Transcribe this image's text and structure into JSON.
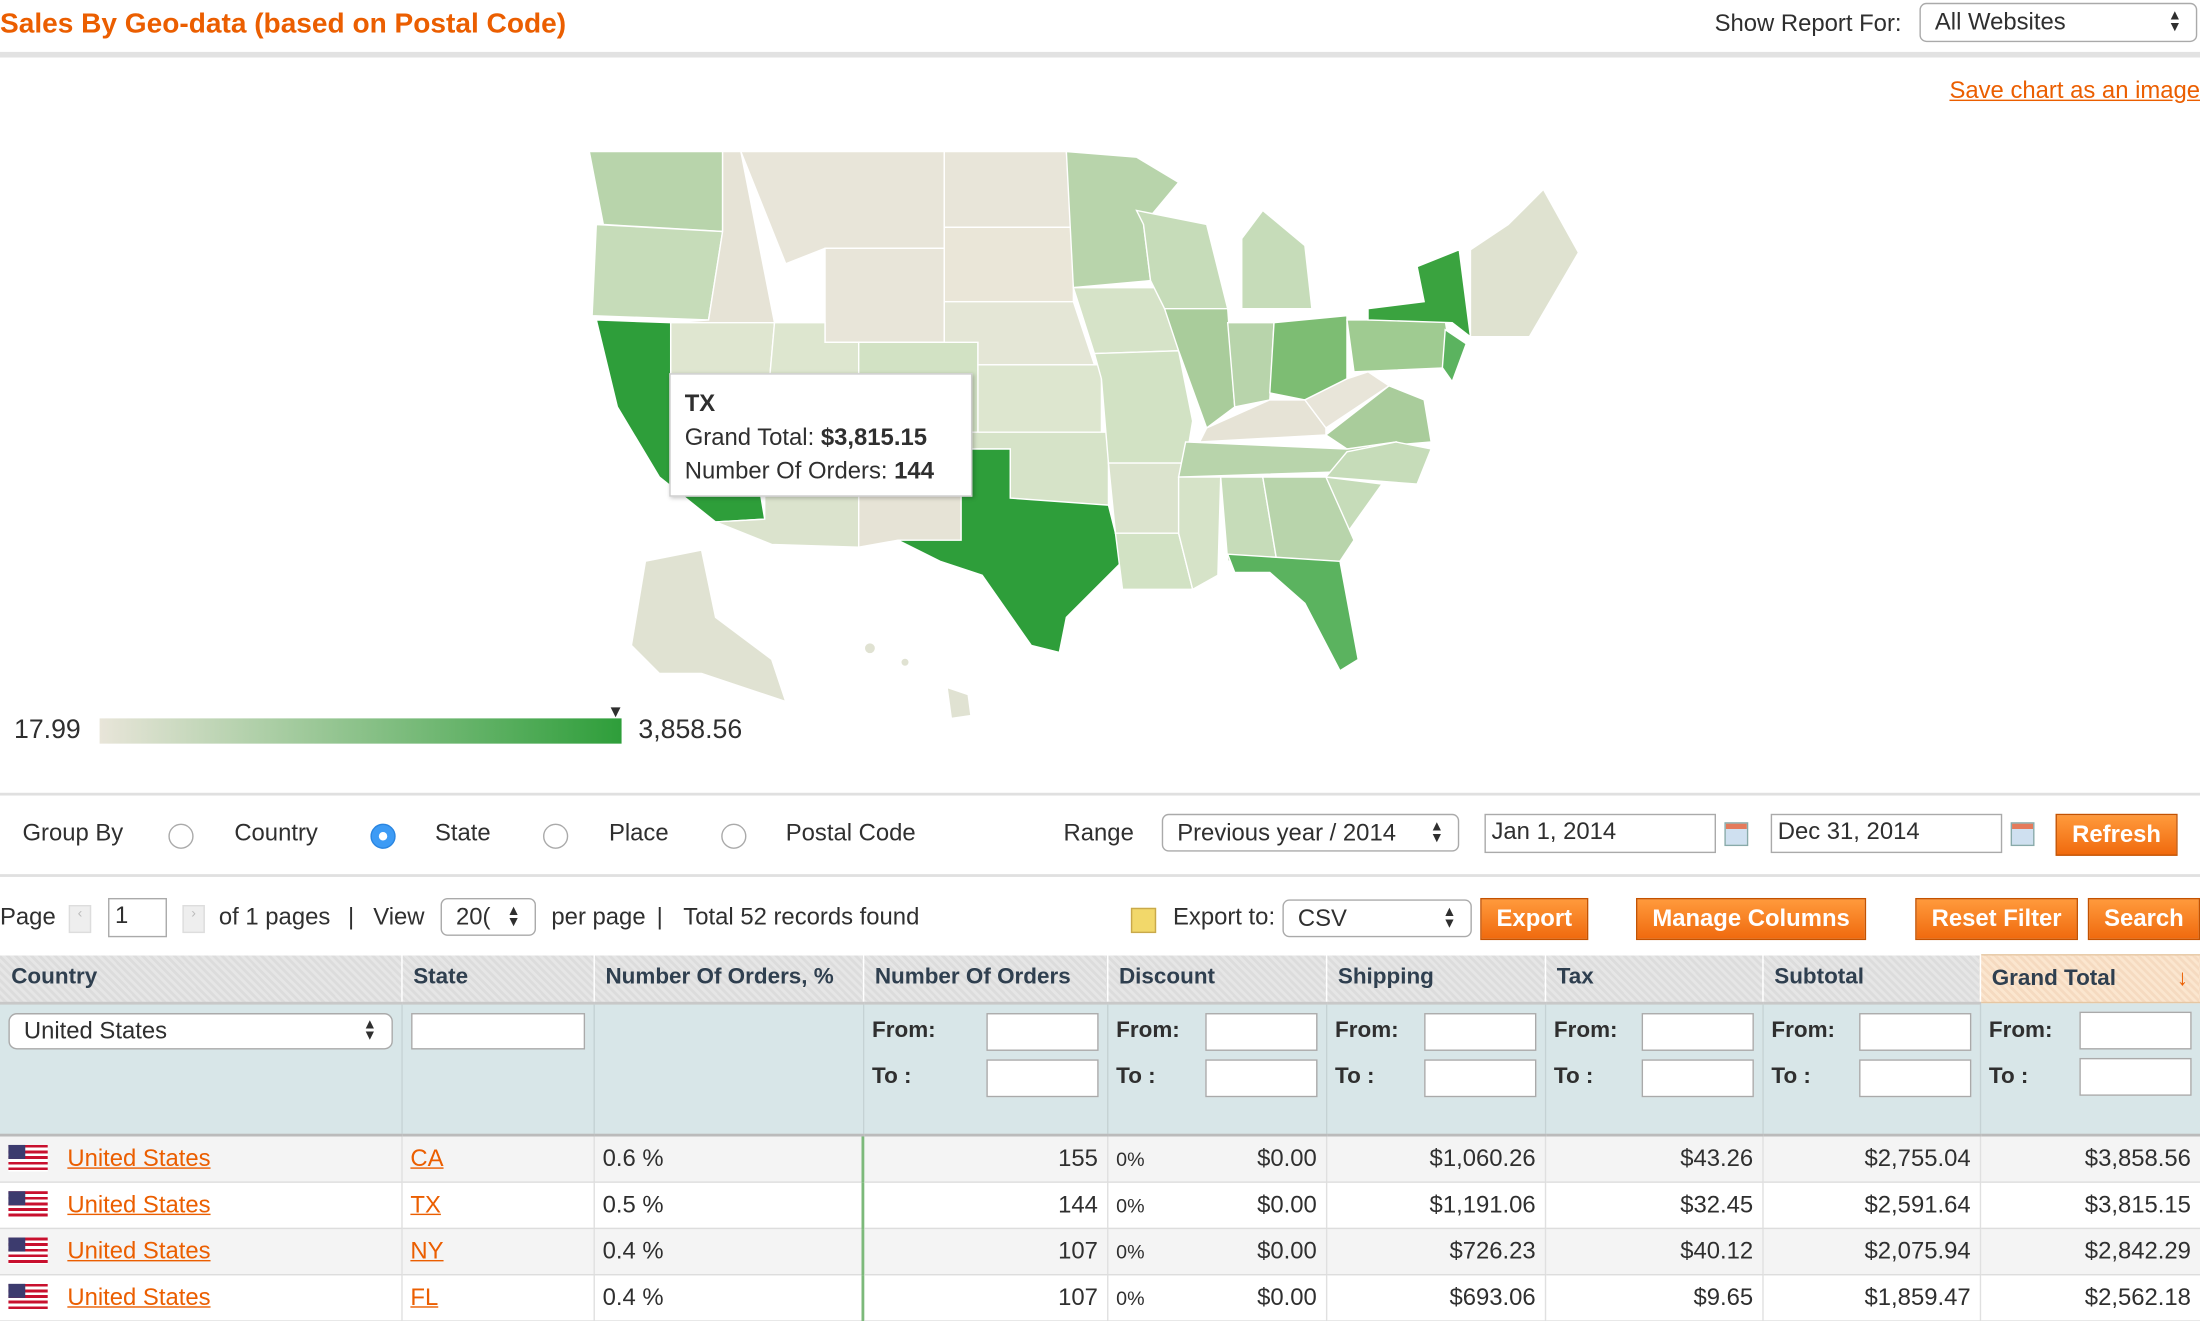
{
  "header": {
    "title": "Sales By Geo-data (based on Postal Code)",
    "show_report_label": "Show Report For:",
    "website_select": "All Websites"
  },
  "save_chart_link": "Save chart as an image",
  "map": {
    "tooltip": {
      "state": "TX",
      "grand_total_label": "Grand Total:",
      "grand_total": "$3,815.15",
      "orders_label": "Number Of Orders:",
      "orders": "144"
    },
    "legend": {
      "min": "17.99",
      "max": "3,858.56",
      "marker_value": 3815.15
    },
    "colors": {
      "low": "#e8e5d9",
      "high": "#2e9e3a"
    }
  },
  "group_by": {
    "label": "Group By",
    "options": [
      {
        "label": "Country",
        "selected": false
      },
      {
        "label": "State",
        "selected": true
      },
      {
        "label": "Place",
        "selected": false
      },
      {
        "label": "Postal Code",
        "selected": false
      }
    ]
  },
  "range": {
    "label": "Range",
    "select": "Previous year / 2014",
    "from": "Jan 1, 2014",
    "to": "Dec 31, 2014",
    "refresh": "Refresh"
  },
  "pager": {
    "page_label": "Page",
    "page": "1",
    "of_pages": "of 1 pages",
    "view_label": "View",
    "per_page": "20(",
    "per_page_label": "per page",
    "total": "Total 52 records found"
  },
  "export": {
    "label": "Export to:",
    "format": "CSV",
    "export": "Export",
    "manage_columns": "Manage Columns",
    "reset_filter": "Reset Filter",
    "search": "Search"
  },
  "grid": {
    "columns": [
      "Country",
      "State",
      "Number Of Orders, %",
      "Number Of Orders",
      "Discount",
      "Shipping",
      "Tax",
      "Subtotal",
      "Grand Total"
    ],
    "filter": {
      "country": "United States",
      "from": "From:",
      "to": "To :"
    },
    "rows": [
      {
        "country": "United States",
        "state": "CA",
        "pct": "0.6 %",
        "orders": "155",
        "disc_pct": "0%",
        "discount": "$0.00",
        "shipping": "$1,060.26",
        "tax": "$43.26",
        "subtotal": "$2,755.04",
        "grand_total": "$3,858.56"
      },
      {
        "country": "United States",
        "state": "TX",
        "pct": "0.5 %",
        "orders": "144",
        "disc_pct": "0%",
        "discount": "$0.00",
        "shipping": "$1,191.06",
        "tax": "$32.45",
        "subtotal": "$2,591.64",
        "grand_total": "$3,815.15"
      },
      {
        "country": "United States",
        "state": "NY",
        "pct": "0.4 %",
        "orders": "107",
        "disc_pct": "0%",
        "discount": "$0.00",
        "shipping": "$726.23",
        "tax": "$40.12",
        "subtotal": "$2,075.94",
        "grand_total": "$2,842.29"
      },
      {
        "country": "United States",
        "state": "FL",
        "pct": "0.4 %",
        "orders": "107",
        "disc_pct": "0%",
        "discount": "$0.00",
        "shipping": "$693.06",
        "tax": "$9.65",
        "subtotal": "$1,859.47",
        "grand_total": "$2,562.18"
      }
    ]
  }
}
